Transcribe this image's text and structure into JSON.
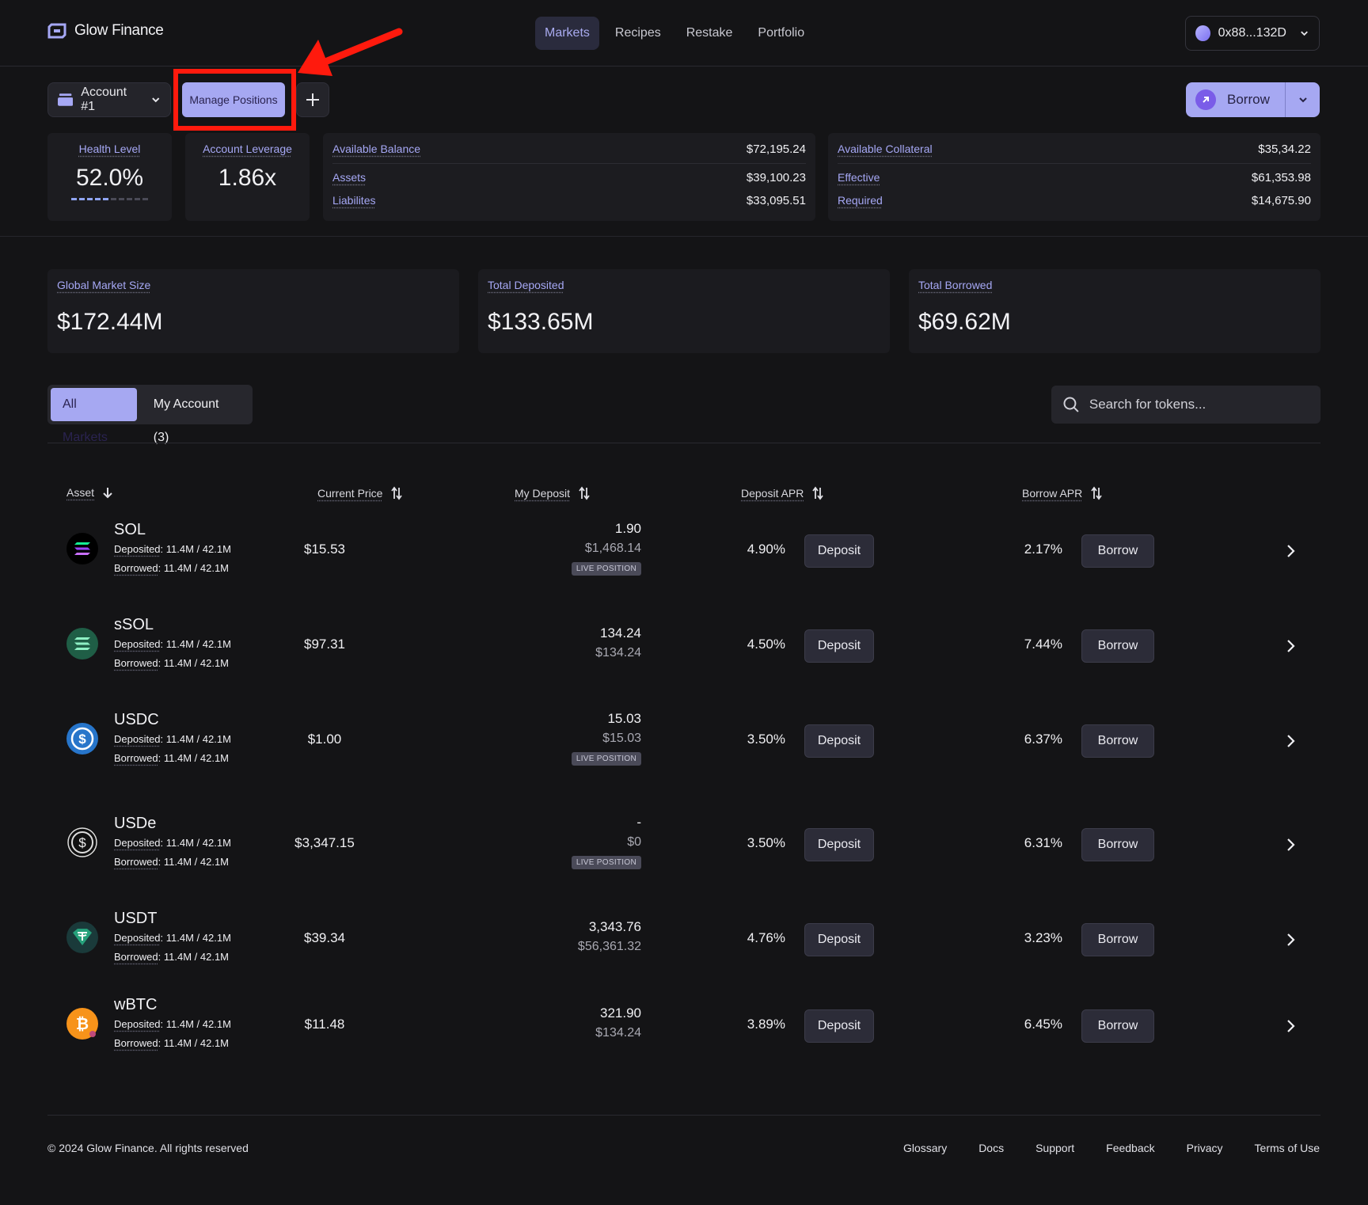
{
  "header": {
    "brand": "Glow Finance",
    "nav": [
      "Markets",
      "Recipes",
      "Restake",
      "Portfolio"
    ],
    "active_nav": "Markets",
    "wallet": "0x88...132D"
  },
  "account_bar": {
    "account": "Account #1",
    "manage": "Manage Positions",
    "borrow": "Borrow"
  },
  "metrics": {
    "health_label": "Health Level",
    "health_value": "52.0%",
    "health_level": 0.52,
    "leverage_label": "Account Leverage",
    "leverage_value": "1.86x"
  },
  "balance": {
    "available_label": "Available Balance",
    "available": "$72,195.24",
    "assets_label": "Assets",
    "assets": "$39,100.23",
    "liabilities_label": "Liabilites",
    "liabilities": "$33,095.51"
  },
  "collateral": {
    "available_label": "Available Collateral",
    "available": "$35,34.22",
    "effective_label": "Effective",
    "effective": "$61,353.98",
    "required_label": "Required",
    "required": "$14,675.90"
  },
  "market_totals": [
    {
      "label": "Global Market Size",
      "value": "$172.44M"
    },
    {
      "label": "Total Deposited",
      "value": "$133.65M"
    },
    {
      "label": "Total Borrowed",
      "value": "$69.62M"
    }
  ],
  "tabs": {
    "all": "All Markets",
    "mine": "My Account (3)"
  },
  "search": {
    "placeholder": "Search for tokens..."
  },
  "table": {
    "headers": {
      "asset": "Asset",
      "price": "Current Price",
      "deposit": "My Deposit",
      "deposit_apr": "Deposit APR",
      "borrow_apr": "Borrow APR"
    },
    "deposit_label": "Deposit",
    "borrow_label": "Borrow",
    "live_label": "LIVE POSITION",
    "deposited_label": "Deposited",
    "borrowed_label": "Borrowed",
    "rows": [
      {
        "asset": "SOL",
        "deposited": "11.4M / 42.1M",
        "borrowed": "11.4M / 42.1M",
        "price": "$15.53",
        "deposit_amount": "1.90",
        "deposit_usd": "$1,468.14",
        "live": true,
        "deposit_apr": "4.90%",
        "borrow_apr": "2.17%",
        "icon": "solana-icon",
        "color": "#000000"
      },
      {
        "asset": "sSOL",
        "deposited": "11.4M / 42.1M",
        "borrowed": "11.4M / 42.1M",
        "price": "$97.31",
        "deposit_amount": "134.24",
        "deposit_usd": "$134.24",
        "live": false,
        "deposit_apr": "4.50%",
        "borrow_apr": "7.44%",
        "icon": "ssol-icon",
        "color": "#1f5e46"
      },
      {
        "asset": "USDC",
        "deposited": "11.4M / 42.1M",
        "borrowed": "11.4M / 42.1M",
        "price": "$1.00",
        "deposit_amount": "15.03",
        "deposit_usd": "$15.03",
        "live": true,
        "deposit_apr": "3.50%",
        "borrow_apr": "6.37%",
        "icon": "usdc-icon",
        "color": "#2775ca"
      },
      {
        "asset": "USDe",
        "deposited": "11.4M / 42.1M",
        "borrowed": "11.4M / 42.1M",
        "price": "$3,347.15",
        "deposit_amount": "-",
        "deposit_usd": "$0",
        "live": true,
        "deposit_apr": "3.50%",
        "borrow_apr": "6.31%",
        "icon": "usde-icon",
        "color": "#111111"
      },
      {
        "asset": "USDT",
        "deposited": "11.4M / 42.1M",
        "borrowed": "11.4M / 42.1M",
        "price": "$39.34",
        "deposit_amount": "3,343.76",
        "deposit_usd": "$56,361.32",
        "live": false,
        "deposit_apr": "4.76%",
        "borrow_apr": "3.23%",
        "icon": "usdt-icon",
        "color": "#1a3a3a"
      },
      {
        "asset": "wBTC",
        "deposited": "11.4M / 42.1M",
        "borrowed": "11.4M / 42.1M",
        "price": "$11.48",
        "deposit_amount": "321.90",
        "deposit_usd": "$134.24",
        "live": false,
        "deposit_apr": "3.89%",
        "borrow_apr": "6.45%",
        "icon": "wbtc-icon",
        "color": "#f7931a"
      }
    ]
  },
  "footer": {
    "copyright": "© 2024 Glow Finance. All rights reserved",
    "links": [
      "Glossary",
      "Docs",
      "Support",
      "Feedback",
      "Privacy",
      "Terms of Use"
    ]
  }
}
